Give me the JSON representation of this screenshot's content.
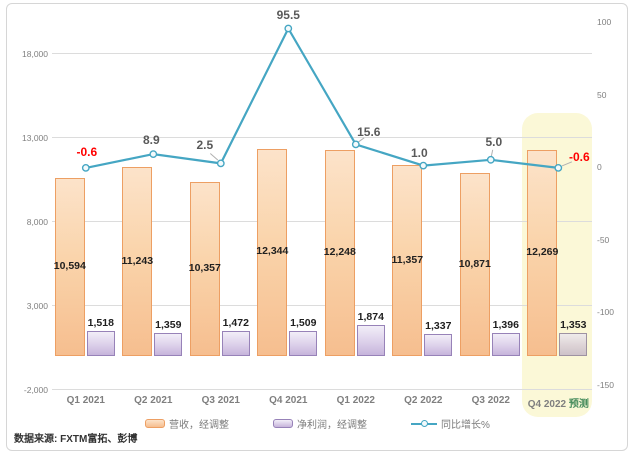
{
  "figure": {
    "source_note": "数据来源: FXTM富拓、彭博"
  },
  "legend": {
    "items": [
      {
        "label": "营收，经调整",
        "type": "bar",
        "color": "#f6be8f"
      },
      {
        "label": "净利润，经调整",
        "type": "bar",
        "color": "#c6b4db"
      },
      {
        "label": "同比增长%",
        "type": "line",
        "color": "#45a6c3"
      }
    ]
  },
  "chart_data": {
    "type": "combo-bar-line",
    "categories": [
      "Q1 2021",
      "Q2 2021",
      "Q3 2021",
      "Q4 2021",
      "Q1 2022",
      "Q2 2022",
      "Q3 2022",
      "Q4 2022 预测"
    ],
    "series": [
      {
        "name": "营收，经调整",
        "type": "bar",
        "axis": "left",
        "values": [
          10594,
          11243,
          10357,
          12344,
          12248,
          11357,
          10871,
          12269
        ],
        "labels": [
          "10,594",
          "11,243",
          "10,357",
          "12,344",
          "12,248",
          "11,357",
          "10,871",
          "12,269"
        ]
      },
      {
        "name": "净利润，经调整",
        "type": "bar",
        "axis": "left",
        "values": [
          1518,
          1359,
          1472,
          1509,
          1874,
          1337,
          1396,
          1353
        ],
        "labels": [
          "1,518",
          "1,359",
          "1,472",
          "1,509",
          "1,874",
          "1,337",
          "1,396",
          "1,353"
        ]
      },
      {
        "name": "同比增长%",
        "type": "line",
        "axis": "right",
        "values": [
          -0.6,
          8.9,
          2.5,
          95.5,
          15.6,
          1.0,
          5.0,
          -0.6
        ],
        "labels": [
          "-0.6",
          "8.9",
          "2.5",
          "95.5",
          "15.6",
          "1.0",
          "5.0",
          "-0.6"
        ],
        "label_colors": [
          "#ff0000",
          "#595959",
          "#595959",
          "#595959",
          "#595959",
          "#595959",
          "#595959",
          "#ff0000"
        ]
      }
    ],
    "left_axis": {
      "min": -2000,
      "max": 18000,
      "ticks": [
        {
          "label": "18,000",
          "value": 18000
        },
        {
          "label": "13,000",
          "value": 13000
        },
        {
          "label": "8,000",
          "value": 8000
        },
        {
          "label": "3,000",
          "value": 3000
        },
        {
          "label": "-2,000",
          "value": -2000
        }
      ]
    },
    "right_axis": {
      "min": -150,
      "max": 100,
      "ticks": [
        {
          "label": "100",
          "value": 100
        },
        {
          "label": "50",
          "value": 50
        },
        {
          "label": "0",
          "value": 0
        },
        {
          "label": "-50",
          "value": -50
        },
        {
          "label": "-100",
          "value": -100
        },
        {
          "label": "-150",
          "value": -150
        }
      ]
    },
    "highlight": {
      "category_index": 7,
      "base_label": "Q4 2022",
      "suffix": "预测",
      "suffix_color": "#478c5c"
    },
    "grid": "horizontal",
    "legend_position": "bottom"
  },
  "colors": {
    "revenue_border": "#ed9f63",
    "profit_border": "#9782b8",
    "line": "#45a6c3",
    "highlight_bg": "#fbf8d7",
    "gridline": "#dcdcdc",
    "axis_text": "#7f7f7f",
    "negative_label": "#ff0000",
    "bar_label": "#1f1f1f"
  }
}
